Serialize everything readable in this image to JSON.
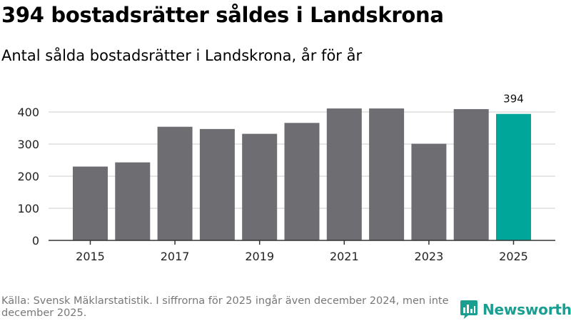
{
  "header": {
    "title": "394 bostadsrätter såldes i Landskrona",
    "subtitle": "Antal sålda bostadsrätter i Landskrona, år för år"
  },
  "footer": {
    "source": "Källa: Svensk Mäklarstatistik. I siffrorna för 2025 ingår även december 2024, men inte december 2025.",
    "brand": "Newsworthy"
  },
  "colors": {
    "bar": "#6e6d72",
    "highlight": "#00a69a",
    "grid": "#dddddd",
    "axis": "#333333",
    "brand": "#1a9e90"
  },
  "chart_data": {
    "type": "bar",
    "title": "Antal sålda bostadsrätter i Landskrona, år för år",
    "xlabel": "",
    "ylabel": "",
    "categories": [
      "2015",
      "2016",
      "2017",
      "2018",
      "2019",
      "2020",
      "2021",
      "2022",
      "2023",
      "2024",
      "2025"
    ],
    "values": [
      230,
      243,
      354,
      347,
      332,
      366,
      411,
      411,
      301,
      409,
      394
    ],
    "highlight_index": 10,
    "highlight_label": "394",
    "x_tick_labels": [
      "2015",
      "2017",
      "2019",
      "2021",
      "2023",
      "2025"
    ],
    "y_ticks": [
      0,
      100,
      200,
      300,
      400
    ],
    "ylim": [
      0,
      420
    ],
    "grid": true,
    "legend": "none"
  }
}
